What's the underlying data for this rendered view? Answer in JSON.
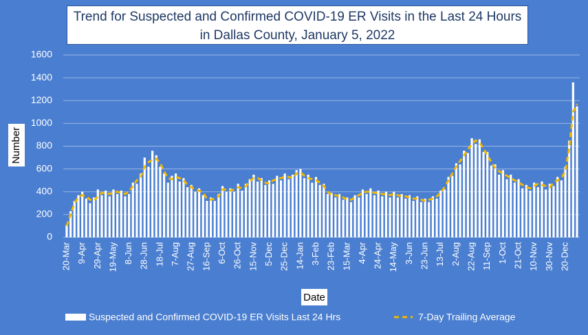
{
  "chart_data": {
    "type": "bar",
    "title": "Trend for Suspected and Confirmed COVID-19 ER Visits in the Last 24 Hours in Dallas County, January 5, 2022",
    "x_label": "Date",
    "y_label": "Number",
    "categories": [
      "20-Mar",
      null,
      null,
      null,
      "9-Apr",
      null,
      null,
      null,
      "29-Apr",
      null,
      null,
      null,
      "19-May",
      null,
      null,
      null,
      "8-Jun",
      null,
      null,
      null,
      "28-Jun",
      null,
      null,
      null,
      "18-Jul",
      null,
      null,
      null,
      "7-Aug",
      null,
      null,
      null,
      "27-Aug",
      null,
      null,
      null,
      "16-Sep",
      null,
      null,
      null,
      "6-Oct",
      null,
      null,
      null,
      "26-Oct",
      null,
      null,
      null,
      "15-Nov",
      null,
      null,
      null,
      "5-Dec",
      null,
      null,
      null,
      "25-Dec",
      null,
      null,
      null,
      "14-Jan",
      null,
      null,
      null,
      "3-Feb",
      null,
      null,
      null,
      "23-Feb",
      null,
      null,
      null,
      "15-Mar",
      null,
      null,
      null,
      "4-Apr",
      null,
      null,
      null,
      "24-Apr",
      null,
      null,
      null,
      "14-May",
      null,
      null,
      null,
      "3-Jun",
      null,
      null,
      null,
      "23-Jun",
      null,
      null,
      null,
      "13-Jul",
      null,
      null,
      null,
      "2-Aug",
      null,
      null,
      null,
      "22-Aug",
      null,
      null,
      null,
      "11-Sep",
      null,
      null,
      null,
      "1-Oct",
      null,
      null,
      null,
      "21-Oct",
      null,
      null,
      null,
      "10-Nov",
      null,
      null,
      null,
      "30-Nov",
      null,
      null,
      null,
      "20-Dec",
      null,
      null,
      null
    ],
    "series": [
      {
        "name": "Suspected and Confirmed COVID-19 ER Visits Last 24 Hrs",
        "type": "bar",
        "color": "#ffffff",
        "values": [
          110,
          230,
          320,
          370,
          400,
          340,
          300,
          350,
          420,
          370,
          410,
          360,
          420,
          380,
          410,
          360,
          380,
          480,
          470,
          560,
          700,
          620,
          760,
          720,
          620,
          560,
          480,
          540,
          560,
          490,
          520,
          440,
          460,
          400,
          430,
          370,
          320,
          350,
          320,
          380,
          450,
          400,
          430,
          400,
          470,
          410,
          470,
          510,
          550,
          490,
          520,
          460,
          500,
          470,
          540,
          500,
          560,
          510,
          550,
          590,
          600,
          520,
          550,
          480,
          530,
          460,
          470,
          380,
          390,
          350,
          380,
          330,
          350,
          310,
          370,
          350,
          420,
          380,
          430,
          370,
          410,
          360,
          400,
          350,
          400,
          350,
          380,
          340,
          370,
          320,
          360,
          310,
          340,
          310,
          360,
          340,
          410,
          420,
          530,
          540,
          650,
          640,
          760,
          740,
          870,
          820,
          860,
          750,
          750,
          630,
          640,
          550,
          590,
          510,
          550,
          480,
          510,
          430,
          460,
          410,
          480,
          440,
          490,
          420,
          470,
          450,
          530,
          500,
          620,
          850,
          1360,
          1150
        ]
      },
      {
        "name": "7-Day Trailing Average",
        "type": "line",
        "color": "#f2b800",
        "values": [
          100,
          200,
          300,
          350,
          370,
          360,
          330,
          320,
          360,
          390,
          390,
          380,
          390,
          400,
          390,
          380,
          400,
          450,
          500,
          530,
          620,
          660,
          680,
          690,
          650,
          580,
          520,
          510,
          530,
          520,
          500,
          460,
          440,
          420,
          410,
          390,
          340,
          330,
          340,
          360,
          420,
          420,
          410,
          420,
          440,
          430,
          450,
          490,
          520,
          520,
          500,
          480,
          470,
          500,
          510,
          520,
          530,
          530,
          520,
          560,
          570,
          540,
          520,
          510,
          500,
          480,
          450,
          400,
          370,
          370,
          360,
          350,
          330,
          330,
          350,
          370,
          390,
          400,
          400,
          390,
          390,
          380,
          380,
          370,
          380,
          370,
          360,
          360,
          350,
          340,
          340,
          330,
          320,
          330,
          340,
          360,
          390,
          440,
          500,
          560,
          620,
          670,
          720,
          770,
          820,
          850,
          830,
          780,
          720,
          660,
          610,
          580,
          560,
          540,
          520,
          500,
          480,
          460,
          440,
          430,
          450,
          470,
          460,
          450,
          440,
          480,
          500,
          520,
          580,
          780,
          1100,
          1170
        ]
      }
    ],
    "ylim": [
      0,
      1600
    ],
    "yticks": [
      0,
      200,
      400,
      600,
      800,
      1000,
      1200,
      1400,
      1600
    ],
    "grid": true
  }
}
